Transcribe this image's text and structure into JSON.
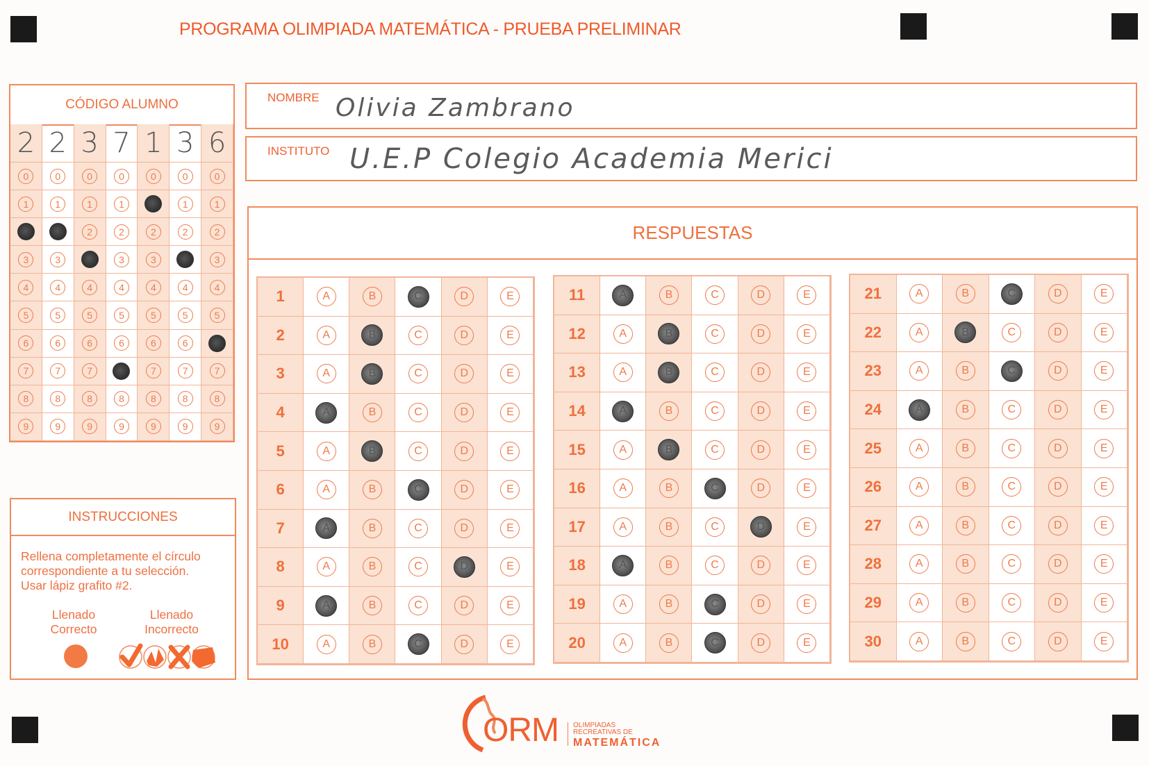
{
  "title": "PROGRAMA OLIMPIADA MATEMÁTICA  - PRUEBA PRELIMINAR",
  "colors": {
    "accent": "#ef6f3c",
    "shade": "#fbe2d3",
    "pencil": "#2e2e2e",
    "marks": "#1a1a1a"
  },
  "student_code": {
    "header": "CÓDIGO ALUMNO",
    "handwritten_digits": [
      "2",
      "2",
      "3",
      "7",
      "1",
      "3",
      "6"
    ],
    "digit_options": [
      "0",
      "1",
      "2",
      "3",
      "4",
      "5",
      "6",
      "7",
      "8",
      "9"
    ],
    "filled": [
      2,
      2,
      3,
      7,
      1,
      3,
      6
    ]
  },
  "nombre": {
    "label": "NOMBRE",
    "value": "Olivia  Zambrano"
  },
  "instituto": {
    "label": "INSTITUTO",
    "value": "U.E.P Colegio  Academia  Merici"
  },
  "respuestas": {
    "header": "RESPUESTAS",
    "options": [
      "A",
      "B",
      "C",
      "D",
      "E"
    ],
    "answers": {
      "1": "C",
      "2": "B",
      "3": "B",
      "4": "A",
      "5": "B",
      "6": "C",
      "7": "A",
      "8": "D",
      "9": "A",
      "10": "C",
      "11": "A",
      "12": "B",
      "13": "B",
      "14": "A",
      "15": "B",
      "16": "C",
      "17": "D",
      "18": "A",
      "19": "C",
      "20": "C",
      "21": "C",
      "22": "B",
      "23": "C",
      "24": "A",
      "25": null,
      "26": null,
      "27": null,
      "28": null,
      "29": null,
      "30": null
    }
  },
  "instrucciones": {
    "header": "INSTRUCCIONES",
    "lines": [
      "Rellena completamente el círculo",
      "correspondiente a tu selección.",
      "Usar lápiz grafito #2."
    ],
    "correct_label_1": "Llenado",
    "correct_label_2": "Correcto",
    "incorrect_label_1": "Llenado",
    "incorrect_label_2": "Incorrecto",
    "incorrect_examples": [
      "check-mark-icon",
      "scribble-icon",
      "cross-mark-icon",
      "partial-fill-icon"
    ]
  },
  "logo": {
    "mark": "ORM",
    "line1": "OLIMPIADAS",
    "line2": "RECREATIVAS DE",
    "line3": "MATEMÁTICA"
  }
}
